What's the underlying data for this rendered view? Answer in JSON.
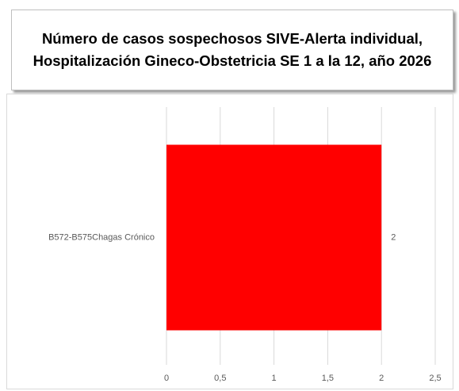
{
  "chart_data": {
    "type": "bar",
    "orientation": "horizontal",
    "title": "Número de casos sospechosos SIVE-Alerta individual, Hospitalización Gineco-Obstetricia SE 1 a la 12, año 2026",
    "categories": [
      "B572-B575Chagas Crónico"
    ],
    "values": [
      2
    ],
    "color": "#ff0000",
    "xlim": [
      0,
      2.5
    ],
    "xticks": [
      0,
      {
        "value": 0.5,
        "label": "0,5"
      },
      1,
      {
        "value": 1.5,
        "label": "1,5"
      },
      2,
      {
        "value": 2.5,
        "label": "2,5"
      }
    ],
    "grid": true
  }
}
